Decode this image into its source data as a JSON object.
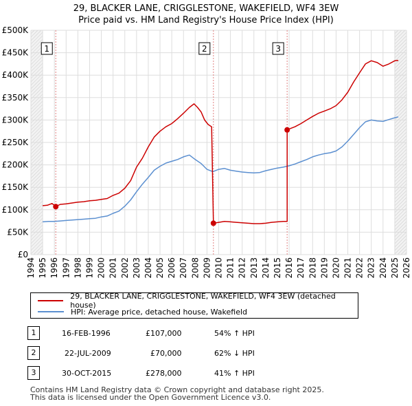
{
  "title_line1": "29, BLACKER LANE, CRIGGLESTONE, WAKEFIELD, WF4 3EW",
  "title_line2": "Price paid vs. HM Land Registry's House Price Index (HPI)",
  "chart_data": {
    "type": "line",
    "title": "29, BLACKER LANE, CRIGGLESTONE, WAKEFIELD, WF4 3EW — Price paid vs. HM Land Registry's House Price Index (HPI)",
    "xlabel": "",
    "ylabel": "",
    "xlim": [
      1994,
      2026
    ],
    "ylim": [
      0,
      500000
    ],
    "grid": true,
    "x_ticks": [
      1994,
      1995,
      1996,
      1997,
      1998,
      1999,
      2000,
      2001,
      2002,
      2003,
      2004,
      2005,
      2006,
      2007,
      2008,
      2009,
      2010,
      2011,
      2012,
      2013,
      2014,
      2015,
      2016,
      2017,
      2018,
      2019,
      2020,
      2021,
      2022,
      2023,
      2024,
      2025,
      2026
    ],
    "y_ticks": [
      0,
      50000,
      100000,
      150000,
      200000,
      250000,
      300000,
      350000,
      400000,
      450000,
      500000
    ],
    "y_tick_labels": [
      "£0",
      "£50K",
      "£100K",
      "£150K",
      "£200K",
      "£250K",
      "£300K",
      "£350K",
      "£400K",
      "£450K",
      "£500K"
    ],
    "series": [
      {
        "name": "29, BLACKER LANE, CRIGGLESTONE, WAKEFIELD, WF4 3EW (detached house)",
        "color": "#cc0000",
        "points": [
          [
            1995.0,
            109000
          ],
          [
            1995.4,
            110000
          ],
          [
            1995.8,
            114000
          ],
          [
            1996.12,
            107000
          ],
          [
            1996.5,
            112000
          ],
          [
            1997,
            113000
          ],
          [
            1997.5,
            115000
          ],
          [
            1998,
            117000
          ],
          [
            1998.5,
            118000
          ],
          [
            1999,
            120000
          ],
          [
            1999.5,
            121000
          ],
          [
            2000,
            123000
          ],
          [
            2000.5,
            125000
          ],
          [
            2001,
            132000
          ],
          [
            2001.5,
            137000
          ],
          [
            2002,
            148000
          ],
          [
            2002.5,
            165000
          ],
          [
            2003,
            195000
          ],
          [
            2003.5,
            215000
          ],
          [
            2004,
            240000
          ],
          [
            2004.5,
            262000
          ],
          [
            2005,
            275000
          ],
          [
            2005.5,
            285000
          ],
          [
            2006,
            292000
          ],
          [
            2006.5,
            303000
          ],
          [
            2007,
            315000
          ],
          [
            2007.5,
            328000
          ],
          [
            2007.9,
            336000
          ],
          [
            2008.2,
            328000
          ],
          [
            2008.5,
            318000
          ],
          [
            2008.8,
            300000
          ],
          [
            2009.1,
            290000
          ],
          [
            2009.4,
            285000
          ],
          [
            2009.55,
            70000
          ],
          [
            2010,
            72000
          ],
          [
            2010.5,
            74000
          ],
          [
            2011,
            73000
          ],
          [
            2011.5,
            72000
          ],
          [
            2012,
            71000
          ],
          [
            2012.5,
            70000
          ],
          [
            2013,
            69000
          ],
          [
            2013.5,
            69000
          ],
          [
            2014,
            70000
          ],
          [
            2014.5,
            72000
          ],
          [
            2015,
            73000
          ],
          [
            2015.5,
            74000
          ],
          [
            2015.83,
            74000
          ],
          [
            2015.83,
            278000
          ],
          [
            2016,
            280000
          ],
          [
            2016.5,
            285000
          ],
          [
            2017,
            292000
          ],
          [
            2017.5,
            300000
          ],
          [
            2018,
            308000
          ],
          [
            2018.5,
            315000
          ],
          [
            2019,
            320000
          ],
          [
            2019.5,
            325000
          ],
          [
            2020,
            332000
          ],
          [
            2020.5,
            345000
          ],
          [
            2021,
            362000
          ],
          [
            2021.5,
            385000
          ],
          [
            2022,
            405000
          ],
          [
            2022.5,
            425000
          ],
          [
            2023,
            432000
          ],
          [
            2023.5,
            428000
          ],
          [
            2024,
            420000
          ],
          [
            2024.5,
            425000
          ],
          [
            2025,
            432000
          ],
          [
            2025.3,
            433000
          ]
        ]
      },
      {
        "name": "HPI: Average price, detached house, Wakefield",
        "color": "#5b8fd0",
        "points": [
          [
            1995.0,
            73000
          ],
          [
            1995.5,
            74000
          ],
          [
            1996,
            74000
          ],
          [
            1996.5,
            75000
          ],
          [
            1997,
            76000
          ],
          [
            1997.5,
            77000
          ],
          [
            1998,
            78000
          ],
          [
            1998.5,
            79000
          ],
          [
            1999,
            80000
          ],
          [
            1999.5,
            81000
          ],
          [
            2000,
            84000
          ],
          [
            2000.5,
            86000
          ],
          [
            2001,
            92000
          ],
          [
            2001.5,
            97000
          ],
          [
            2002,
            108000
          ],
          [
            2002.5,
            122000
          ],
          [
            2003,
            140000
          ],
          [
            2003.5,
            157000
          ],
          [
            2004,
            172000
          ],
          [
            2004.5,
            188000
          ],
          [
            2005,
            197000
          ],
          [
            2005.5,
            204000
          ],
          [
            2006,
            208000
          ],
          [
            2006.5,
            212000
          ],
          [
            2007,
            218000
          ],
          [
            2007.5,
            222000
          ],
          [
            2008,
            212000
          ],
          [
            2008.5,
            203000
          ],
          [
            2009,
            190000
          ],
          [
            2009.5,
            185000
          ],
          [
            2010,
            190000
          ],
          [
            2010.5,
            192000
          ],
          [
            2011,
            188000
          ],
          [
            2011.5,
            186000
          ],
          [
            2012,
            184000
          ],
          [
            2012.5,
            183000
          ],
          [
            2013,
            182000
          ],
          [
            2013.5,
            183000
          ],
          [
            2014,
            187000
          ],
          [
            2014.5,
            190000
          ],
          [
            2015,
            193000
          ],
          [
            2015.5,
            195000
          ],
          [
            2016,
            198000
          ],
          [
            2016.5,
            202000
          ],
          [
            2017,
            207000
          ],
          [
            2017.5,
            212000
          ],
          [
            2018,
            218000
          ],
          [
            2018.5,
            222000
          ],
          [
            2019,
            225000
          ],
          [
            2019.5,
            227000
          ],
          [
            2020,
            231000
          ],
          [
            2020.5,
            240000
          ],
          [
            2021,
            253000
          ],
          [
            2021.5,
            268000
          ],
          [
            2022,
            283000
          ],
          [
            2022.5,
            296000
          ],
          [
            2023,
            300000
          ],
          [
            2023.5,
            298000
          ],
          [
            2024,
            297000
          ],
          [
            2024.5,
            301000
          ],
          [
            2025,
            305000
          ],
          [
            2025.3,
            307000
          ]
        ]
      }
    ],
    "sale_markers": [
      {
        "label": "1",
        "x": 1996.12,
        "y": 107000
      },
      {
        "label": "2",
        "x": 2009.55,
        "y": 70000
      },
      {
        "label": "3",
        "x": 2015.83,
        "y": 278000
      }
    ]
  },
  "legend": {
    "property_label": "29, BLACKER LANE, CRIGGLESTONE, WAKEFIELD, WF4 3EW (detached house)",
    "hpi_label": "HPI: Average price, detached house, Wakefield",
    "property_color": "#cc0000",
    "hpi_color": "#5b8fd0"
  },
  "sales": [
    {
      "num": "1",
      "date": "16-FEB-1996",
      "price": "£107,000",
      "hpi": "54% ↑ HPI"
    },
    {
      "num": "2",
      "date": "22-JUL-2009",
      "price": "£70,000",
      "hpi": "62% ↓ HPI"
    },
    {
      "num": "3",
      "date": "30-OCT-2015",
      "price": "£278,000",
      "hpi": "41% ↑ HPI"
    }
  ],
  "footer_line1": "Contains HM Land Registry data © Crown copyright and database right 2025.",
  "footer_line2": "This data is licensed under the Open Government Licence v3.0."
}
